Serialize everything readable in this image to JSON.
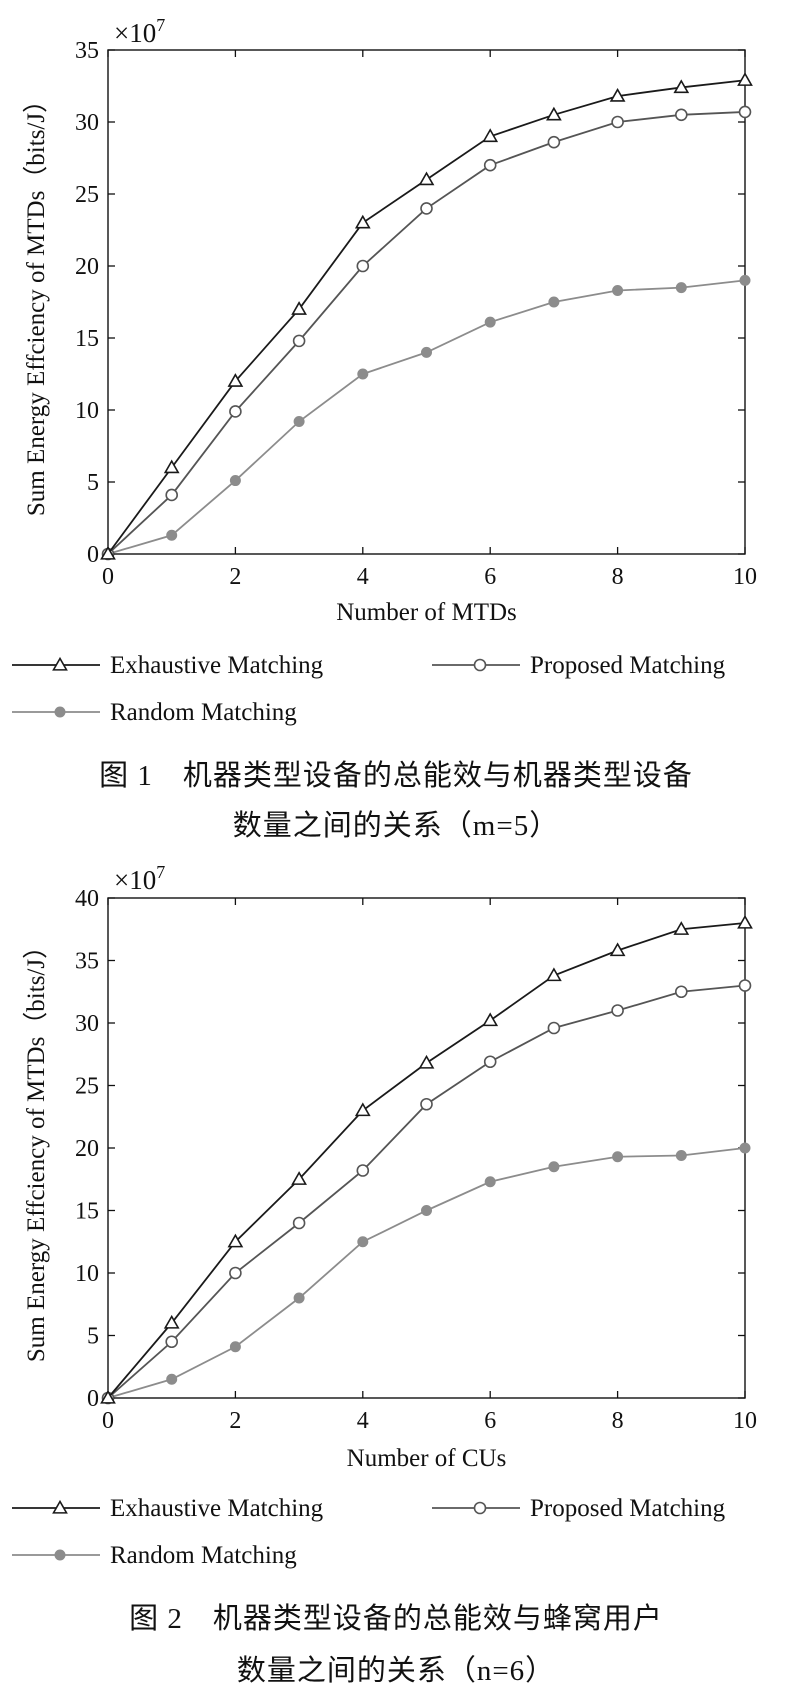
{
  "chart_data": [
    {
      "type": "line",
      "multiplier": "×10",
      "multiplier_exp": "7",
      "xlabel": "Number of MTDs",
      "ylabel": "Sum Energy Effciency of MTDs（bits/J）",
      "xlim": [
        0,
        10
      ],
      "ylim": [
        0,
        35
      ],
      "xticks": [
        0,
        2,
        4,
        6,
        8,
        10
      ],
      "yticks": [
        0,
        5,
        10,
        15,
        20,
        25,
        30,
        35
      ],
      "x": [
        0,
        1,
        2,
        3,
        4,
        5,
        6,
        7,
        8,
        9,
        10
      ],
      "series": [
        {
          "name": "Exhaustive Matching",
          "color": "#1a1a1a",
          "marker": "triangle",
          "values": [
            0,
            6,
            12,
            17,
            23,
            26,
            29,
            30.5,
            31.8,
            32.4,
            32.9
          ]
        },
        {
          "name": "Proposed Matching",
          "color": "#555555",
          "marker": "circle-open",
          "values": [
            0,
            4.1,
            9.9,
            14.8,
            20,
            24,
            27,
            28.6,
            30,
            30.5,
            30.7
          ]
        },
        {
          "name": "Random Matching",
          "color": "#8c8c8c",
          "marker": "circle-filled",
          "values": [
            0,
            1.3,
            5.1,
            9.2,
            12.5,
            14,
            16.1,
            17.5,
            18.3,
            18.5,
            19
          ]
        }
      ],
      "caption_line1": "图 1　机器类型设备的总能效与机器类型设备",
      "caption_line2": "数量之间的关系（m=5）"
    },
    {
      "type": "line",
      "multiplier": "×10",
      "multiplier_exp": "7",
      "xlabel": "Number of CUs",
      "ylabel": "Sum Energy Effciency of MTDs（bits/J）",
      "xlim": [
        0,
        10
      ],
      "ylim": [
        0,
        40
      ],
      "xticks": [
        0,
        2,
        4,
        6,
        8,
        10
      ],
      "yticks": [
        0,
        5,
        10,
        15,
        20,
        25,
        30,
        35,
        40
      ],
      "x": [
        0,
        1,
        2,
        3,
        4,
        5,
        6,
        7,
        8,
        9,
        10
      ],
      "series": [
        {
          "name": "Exhaustive Matching",
          "color": "#1a1a1a",
          "marker": "triangle",
          "values": [
            0,
            6,
            12.5,
            17.5,
            23,
            26.8,
            30.2,
            33.8,
            35.8,
            37.5,
            38
          ]
        },
        {
          "name": "Proposed Matching",
          "color": "#555555",
          "marker": "circle-open",
          "values": [
            0,
            4.5,
            10,
            14,
            18.2,
            23.5,
            26.9,
            29.6,
            31,
            32.5,
            33
          ]
        },
        {
          "name": "Random Matching",
          "color": "#8c8c8c",
          "marker": "circle-filled",
          "values": [
            0,
            1.5,
            4.1,
            8,
            12.5,
            15,
            17.3,
            18.5,
            19.3,
            19.4,
            20
          ]
        }
      ],
      "caption_line1": "图 2　机器类型设备的总能效与蜂窝用户",
      "caption_line2": "数量之间的关系（n=6）"
    }
  ]
}
